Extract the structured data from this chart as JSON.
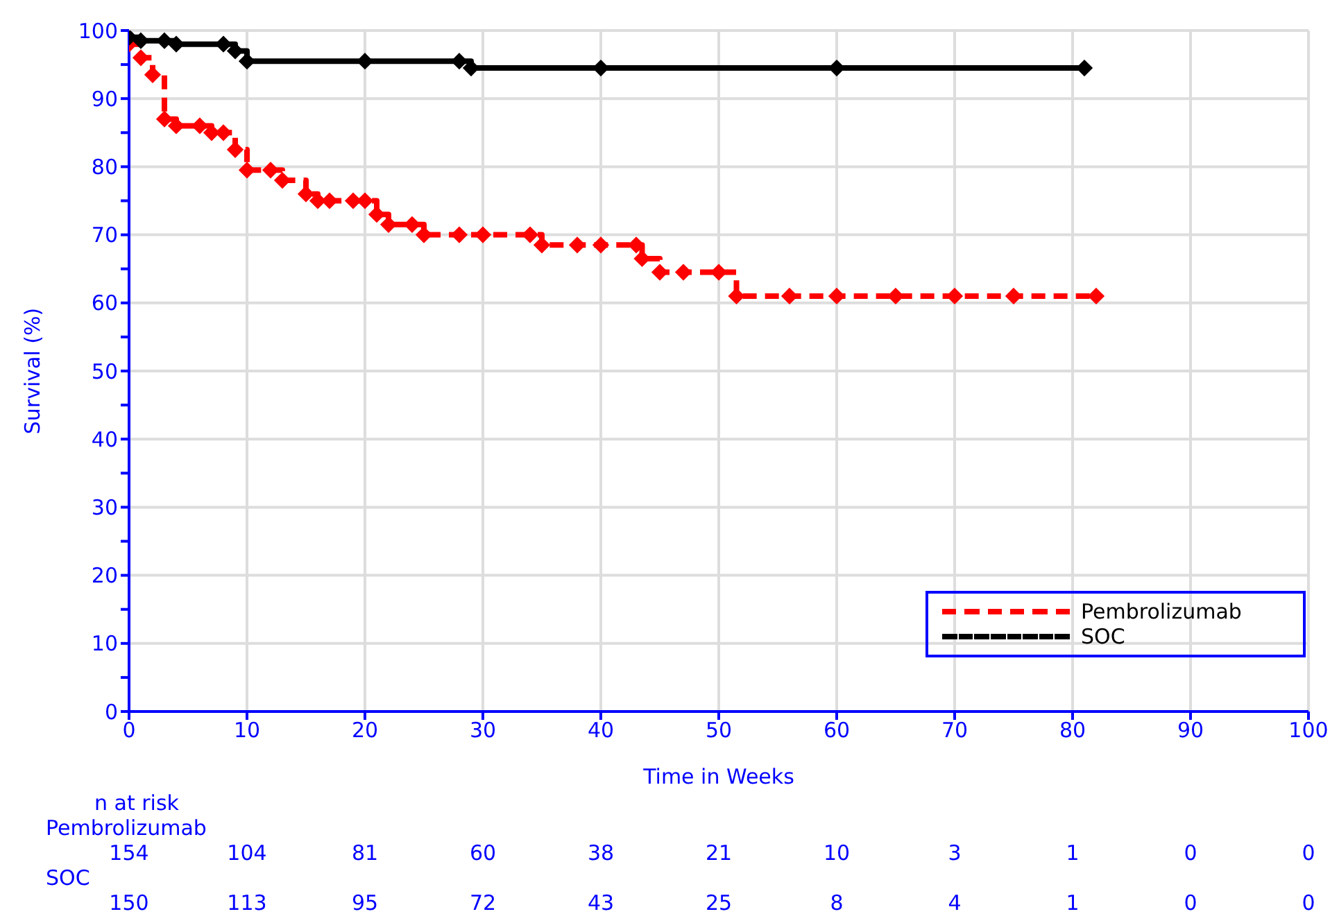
{
  "chart_data": {
    "type": "step",
    "xlabel": "Time in Weeks",
    "ylabel": "Survival (%)",
    "xlim": [
      0,
      100
    ],
    "xticks": [
      0,
      10,
      20,
      30,
      40,
      50,
      60,
      70,
      80,
      90,
      100
    ],
    "ylim": [
      0,
      100
    ],
    "yticks": [
      0,
      {
        "value": 5,
        "label": null
      },
      10,
      {
        "value": 15,
        "label": null
      },
      20,
      {
        "value": 25,
        "label": null
      },
      30,
      {
        "value": 35,
        "label": null
      },
      40,
      {
        "value": 45,
        "label": null
      },
      50,
      {
        "value": 55,
        "label": null
      },
      60,
      {
        "value": 65,
        "label": null
      },
      70,
      {
        "value": 75,
        "label": null
      },
      80,
      {
        "value": 85,
        "label": null
      },
      90,
      {
        "value": 95,
        "label": null
      },
      100
    ],
    "grid": true,
    "legend": "bottom right",
    "marker": "diamond",
    "series": [
      {
        "name": "Pembrolizumab",
        "color": "#ff0000",
        "line_style": "dashed",
        "x": [
          0,
          1,
          2,
          3,
          4,
          6,
          7,
          8,
          9,
          10,
          12,
          13,
          15,
          16,
          17,
          19,
          20,
          21,
          22,
          24,
          25,
          28,
          30,
          34,
          35,
          38,
          40,
          43,
          43.5,
          45,
          47,
          50,
          51.5,
          56,
          60,
          65,
          70,
          75,
          82
        ],
        "values": [
          98,
          96,
          93.5,
          87,
          86,
          86,
          85,
          85,
          82.5,
          79.5,
          79.5,
          78,
          76,
          75,
          75,
          75,
          75,
          73,
          71.5,
          71.5,
          70,
          70,
          70,
          70,
          68.5,
          68.5,
          68.5,
          68.5,
          66.5,
          64.5,
          64.5,
          64.5,
          61,
          61,
          61,
          61,
          61,
          61,
          61
        ]
      },
      {
        "name": "SOC",
        "color": "#000000",
        "line_style": "solid",
        "x": [
          0,
          1,
          3,
          4,
          8,
          9,
          10,
          20,
          28,
          29,
          40,
          60,
          81
        ],
        "values": [
          99,
          98.5,
          98.5,
          98,
          98,
          97,
          95.5,
          95.5,
          95.5,
          94.5,
          94.5,
          94.5,
          94.5
        ]
      }
    ],
    "annotations": [
      "n at risk",
      "Pembrolizumab",
      "154",
      "104",
      "81",
      "60",
      "38",
      "21",
      "10",
      "3",
      "1",
      "0",
      "0",
      "SOC",
      "150",
      "113",
      "95",
      "72",
      "43",
      "25",
      "8",
      "4",
      "1",
      "0",
      "0"
    ]
  }
}
